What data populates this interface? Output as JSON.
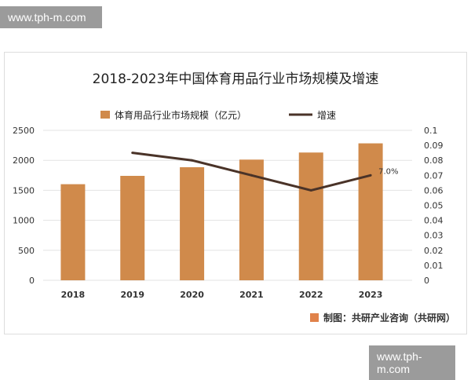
{
  "watermark_top": "www.tph-m.com",
  "watermark_bottom": "www.tph-m.com",
  "source": "制图：共研产业咨询（共研网）",
  "chart_data": {
    "type": "bar+line",
    "title": "2018-2023年中国体育用品行业市场规模及增速",
    "categories": [
      "2018",
      "2019",
      "2020",
      "2021",
      "2022",
      "2023"
    ],
    "series": [
      {
        "name": "体育用品行业市场规模（亿元）",
        "type": "bar",
        "axis": "left",
        "color": "#d08a4b",
        "values": [
          1602,
          1741,
          1885,
          2012,
          2130,
          2283
        ]
      },
      {
        "name": "增速",
        "type": "line",
        "axis": "right",
        "color": "#4a3328",
        "values": [
          null,
          0.085,
          0.08,
          0.07,
          0.06,
          0.07
        ]
      }
    ],
    "ylim_left": [
      0,
      2500
    ],
    "yticks_left": [
      "0",
      "500",
      "1000",
      "1500",
      "2000",
      "2500"
    ],
    "ylim_right": [
      0,
      0.1
    ],
    "yticks_right": [
      "0",
      "0.01",
      "0.02",
      "0.03",
      "0.04",
      "0.05",
      "0.06",
      "0.07",
      "0.08",
      "0.09",
      "0.1"
    ],
    "annotations": [
      {
        "category": "2023",
        "text": "7.0%"
      }
    ],
    "grid": true,
    "legend": "top"
  }
}
